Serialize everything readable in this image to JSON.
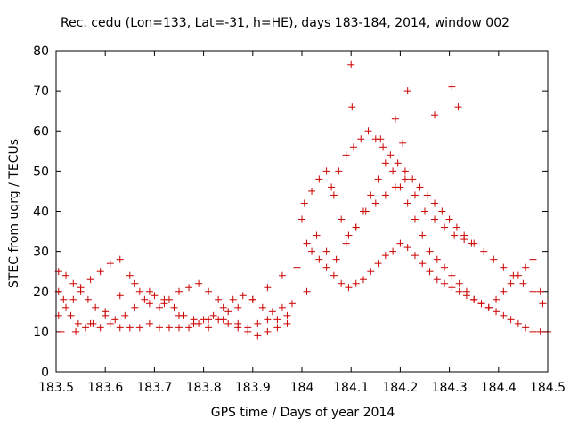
{
  "chart_data": {
    "type": "scatter",
    "title": "Rec. cedu (Lon=133, Lat=-31, h=HE), days 183-184, 2014, window 002",
    "xlabel": "GPS time / Days of year 2014",
    "ylabel": "STEC from uqrg / TECUs",
    "xlim": [
      183.5,
      184.5
    ],
    "ylim": [
      0,
      80
    ],
    "xticks": [
      183.5,
      183.6,
      183.7,
      183.8,
      183.9,
      184,
      184.1,
      184.2,
      184.3,
      184.4,
      184.5
    ],
    "xtick_labels": [
      "183.5",
      "183.6",
      "183.7",
      "183.8",
      "183.9",
      "184",
      "184.1",
      "184.2",
      "184.3",
      "184.4",
      "184.5"
    ],
    "yticks": [
      0,
      10,
      20,
      30,
      40,
      50,
      60,
      70,
      80
    ],
    "ytick_labels": [
      "0",
      "10",
      "20",
      "30",
      "40",
      "50",
      "60",
      "70",
      "80"
    ],
    "marker": "+",
    "marker_color": "#cc0000",
    "series": [
      {
        "name": "STEC",
        "x": [
          183.505,
          183.515,
          183.53,
          183.545,
          183.56,
          183.575,
          183.59,
          183.61,
          183.63,
          183.65,
          183.67,
          183.69,
          183.71,
          183.73,
          183.75,
          183.77,
          183.79,
          183.81,
          183.83,
          183.85,
          183.87,
          183.89,
          183.91,
          183.93,
          183.95,
          183.97,
          183.505,
          183.52,
          183.535,
          183.55,
          183.565,
          183.58,
          183.6,
          183.62,
          183.64,
          183.66,
          183.68,
          183.7,
          183.72,
          183.74,
          183.76,
          183.78,
          183.8,
          183.82,
          183.84,
          183.86,
          183.88,
          183.9,
          183.92,
          183.94,
          183.96,
          183.98,
          183.505,
          183.52,
          183.535,
          183.55,
          183.57,
          183.59,
          183.61,
          183.63,
          183.65,
          183.67,
          183.69,
          183.71,
          183.73,
          183.75,
          183.77,
          183.79,
          183.81,
          183.83,
          183.85,
          183.87,
          183.89,
          183.91,
          183.93,
          183.95,
          183.97,
          183.51,
          183.54,
          183.57,
          183.6,
          183.63,
          183.66,
          183.69,
          183.72,
          183.75,
          183.78,
          183.81,
          183.84,
          183.87,
          183.9,
          183.93,
          183.96,
          183.99,
          184.0,
          184.01,
          184.02,
          184.035,
          184.05,
          184.065,
          184.08,
          184.095,
          184.11,
          184.125,
          184.14,
          184.155,
          184.17,
          184.185,
          184.2,
          184.215,
          184.23,
          184.245,
          184.26,
          184.275,
          184.29,
          184.305,
          184.32,
          184.335,
          184.35,
          184.365,
          184.38,
          184.395,
          184.41,
          184.425,
          184.44,
          184.455,
          184.47,
          184.485,
          184.5,
          184.005,
          184.02,
          184.035,
          184.05,
          184.065,
          184.08,
          184.095,
          184.11,
          184.125,
          184.14,
          184.155,
          184.17,
          184.185,
          184.2,
          184.215,
          184.23,
          184.245,
          184.26,
          184.275,
          184.29,
          184.305,
          184.32,
          184.335,
          184.35,
          184.365,
          184.38,
          184.395,
          184.41,
          184.425,
          184.44,
          184.455,
          184.47,
          184.485,
          184.01,
          184.03,
          184.05,
          184.07,
          184.09,
          184.11,
          184.13,
          184.15,
          184.17,
          184.19,
          184.21,
          184.23,
          184.25,
          184.27,
          184.29,
          184.31,
          184.33,
          184.35,
          184.37,
          184.39,
          184.41,
          184.43,
          184.45,
          184.47,
          184.49,
          184.06,
          184.075,
          184.09,
          184.105,
          184.12,
          184.135,
          184.15,
          184.165,
          184.18,
          184.195,
          184.21,
          184.225,
          184.24,
          184.255,
          184.27,
          184.285,
          184.3,
          184.315,
          184.33,
          184.345,
          184.1,
          184.102,
          184.16,
          184.19,
          184.205,
          184.215,
          184.27,
          184.305,
          184.318
        ],
        "y": [
          20,
          18,
          14,
          12,
          11,
          12,
          11,
          12,
          11,
          11,
          11,
          12,
          11,
          11,
          11,
          11,
          12,
          13,
          13,
          12,
          11,
          11,
          12,
          13,
          13,
          14,
          25,
          24,
          22,
          20,
          18,
          16,
          14,
          13,
          14,
          16,
          18,
          19,
          18,
          16,
          14,
          13,
          13,
          14,
          16,
          18,
          19,
          18,
          16,
          15,
          16,
          17,
          14,
          16,
          18,
          21,
          23,
          25,
          27,
          28,
          24,
          20,
          17,
          16,
          18,
          20,
          21,
          22,
          20,
          18,
          15,
          12,
          10,
          9,
          10,
          11,
          12,
          10,
          10,
          12,
          15,
          19,
          22,
          20,
          17,
          14,
          12,
          11,
          13,
          16,
          18,
          21,
          24,
          26,
          38,
          32,
          30,
          28,
          26,
          24,
          22,
          21,
          22,
          23,
          25,
          27,
          29,
          30,
          32,
          31,
          29,
          27,
          25,
          23,
          22,
          21,
          20,
          19,
          18,
          17,
          16,
          15,
          14,
          13,
          12,
          11,
          10,
          10,
          10,
          42,
          45,
          48,
          50,
          44,
          38,
          34,
          36,
          40,
          44,
          48,
          52,
          50,
          46,
          42,
          38,
          34,
          30,
          28,
          26,
          24,
          22,
          20,
          18,
          17,
          16,
          18,
          20,
          22,
          24,
          26,
          28,
          20,
          20,
          34,
          30,
          28,
          32,
          36,
          40,
          42,
          44,
          46,
          48,
          44,
          40,
          38,
          36,
          34,
          33,
          32,
          30,
          28,
          26,
          24,
          22,
          20,
          17,
          46,
          50,
          54,
          56,
          58,
          60,
          58,
          56,
          54,
          52,
          50,
          48,
          46,
          44,
          42,
          40,
          38,
          36,
          34,
          32,
          76.5,
          66,
          58,
          63,
          57,
          70,
          64,
          71,
          66
        ]
      }
    ]
  }
}
